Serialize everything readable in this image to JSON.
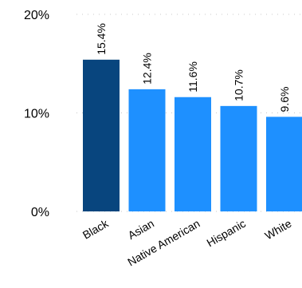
{
  "chart_data": {
    "type": "bar",
    "categories": [
      "Black",
      "Asian",
      "Native American",
      "Hispanic",
      "White"
    ],
    "values": [
      15.4,
      12.4,
      11.6,
      10.7,
      9.6
    ],
    "data_labels": [
      "15.4%",
      "12.4%",
      "11.6%",
      "10.7%",
      "9.6%"
    ],
    "y_ticks": [
      {
        "value": 0,
        "label": "0%"
      },
      {
        "value": 10,
        "label": "10%"
      },
      {
        "value": 20,
        "label": "20%"
      }
    ],
    "ylim": [
      0,
      20
    ],
    "grid": true,
    "title": "",
    "xlabel": "",
    "ylabel": "",
    "highlight_color": "#08457e",
    "bar_color": "#1e90ff",
    "highlight_index": 0
  }
}
